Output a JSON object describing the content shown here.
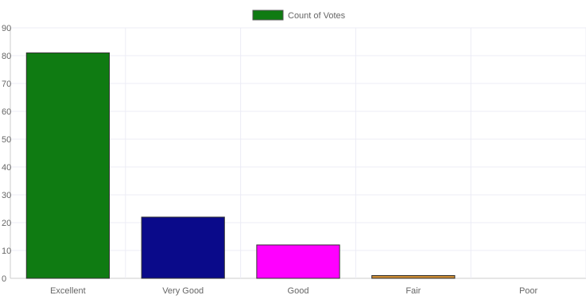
{
  "chart_data": {
    "type": "bar",
    "categories": [
      "Excellent",
      "Very Good",
      "Good",
      "Fair",
      "Poor"
    ],
    "series": [
      {
        "name": "Count of Votes",
        "values": [
          81,
          22,
          12,
          1,
          0
        ]
      }
    ],
    "bar_colors": [
      "#0f7b12",
      "#0a0a8a",
      "#ff00ff",
      "#c98a33",
      "#999999"
    ],
    "bar_border_color": "#333333",
    "legend": {
      "position": "top",
      "swatch_color": "#0f7b12"
    },
    "ylim": [
      0,
      90
    ],
    "yticks": [
      0,
      10,
      20,
      30,
      40,
      50,
      60,
      70,
      80,
      90
    ],
    "grid": true,
    "title": "",
    "xlabel": "",
    "ylabel": ""
  }
}
